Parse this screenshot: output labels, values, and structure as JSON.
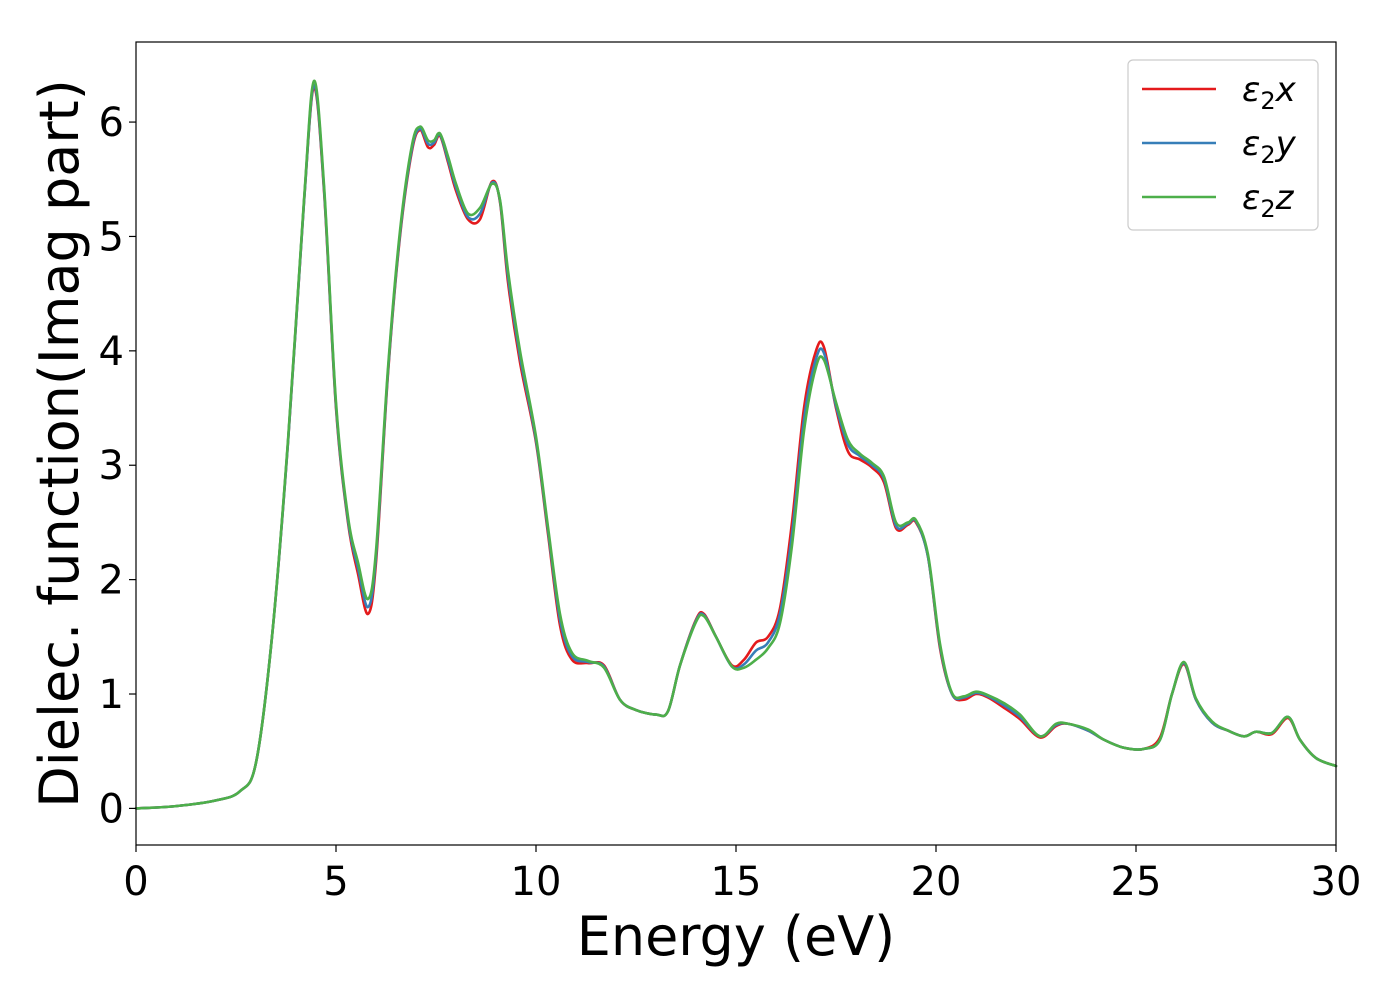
{
  "chart_data": {
    "type": "line",
    "xlabel": "Energy (eV)",
    "ylabel": "Dielec. function(Imag part)",
    "xlim": [
      0,
      30
    ],
    "ylim": [
      -0.32,
      6.7
    ],
    "xticks": [
      0,
      5,
      10,
      15,
      20,
      25,
      30
    ],
    "xtick_labels": [
      "0",
      "5",
      "10",
      "15",
      "20",
      "25",
      "30"
    ],
    "yticks": [
      0,
      1,
      2,
      3,
      4,
      5,
      6
    ],
    "ytick_labels": [
      "0",
      "1",
      "2",
      "3",
      "4",
      "5",
      "6"
    ],
    "grid": false,
    "legend_position": "top-right",
    "series": [
      {
        "name": "ε2x",
        "legend_main": "ε",
        "legend_sub": "2",
        "legend_suffix": "x",
        "color": "#e41a1c",
        "points": [
          [
            0,
            0.0
          ],
          [
            1,
            0.02
          ],
          [
            2,
            0.07
          ],
          [
            2.6,
            0.15
          ],
          [
            3.0,
            0.4
          ],
          [
            3.4,
            1.5
          ],
          [
            3.8,
            3.2
          ],
          [
            4.2,
            5.3
          ],
          [
            4.45,
            6.3
          ],
          [
            4.7,
            5.4
          ],
          [
            5.0,
            3.5
          ],
          [
            5.3,
            2.5
          ],
          [
            5.55,
            2.05
          ],
          [
            5.8,
            1.7
          ],
          [
            6.0,
            2.15
          ],
          [
            6.3,
            3.8
          ],
          [
            6.6,
            5.0
          ],
          [
            6.9,
            5.75
          ],
          [
            7.1,
            5.93
          ],
          [
            7.3,
            5.78
          ],
          [
            7.45,
            5.8
          ],
          [
            7.6,
            5.88
          ],
          [
            7.8,
            5.65
          ],
          [
            8.0,
            5.4
          ],
          [
            8.3,
            5.15
          ],
          [
            8.6,
            5.15
          ],
          [
            8.9,
            5.48
          ],
          [
            9.1,
            5.3
          ],
          [
            9.3,
            4.6
          ],
          [
            9.6,
            3.9
          ],
          [
            10.0,
            3.2
          ],
          [
            10.3,
            2.4
          ],
          [
            10.6,
            1.6
          ],
          [
            10.9,
            1.3
          ],
          [
            11.3,
            1.27
          ],
          [
            11.7,
            1.25
          ],
          [
            12.1,
            0.95
          ],
          [
            12.5,
            0.86
          ],
          [
            13.0,
            0.82
          ],
          [
            13.3,
            0.85
          ],
          [
            13.6,
            1.25
          ],
          [
            14.0,
            1.65
          ],
          [
            14.2,
            1.7
          ],
          [
            14.5,
            1.5
          ],
          [
            14.9,
            1.25
          ],
          [
            15.2,
            1.3
          ],
          [
            15.5,
            1.45
          ],
          [
            15.8,
            1.5
          ],
          [
            16.1,
            1.75
          ],
          [
            16.4,
            2.5
          ],
          [
            16.7,
            3.5
          ],
          [
            17.0,
            4.0
          ],
          [
            17.2,
            4.03
          ],
          [
            17.5,
            3.5
          ],
          [
            17.8,
            3.12
          ],
          [
            18.1,
            3.05
          ],
          [
            18.4,
            2.98
          ],
          [
            18.7,
            2.85
          ],
          [
            19.0,
            2.45
          ],
          [
            19.3,
            2.48
          ],
          [
            19.5,
            2.5
          ],
          [
            19.8,
            2.2
          ],
          [
            20.1,
            1.4
          ],
          [
            20.4,
            1.0
          ],
          [
            20.7,
            0.95
          ],
          [
            21.0,
            1.0
          ],
          [
            21.3,
            0.97
          ],
          [
            21.7,
            0.88
          ],
          [
            22.1,
            0.78
          ],
          [
            22.6,
            0.62
          ],
          [
            23.0,
            0.72
          ],
          [
            23.3,
            0.74
          ],
          [
            23.8,
            0.68
          ],
          [
            24.2,
            0.6
          ],
          [
            24.7,
            0.53
          ],
          [
            25.2,
            0.52
          ],
          [
            25.6,
            0.62
          ],
          [
            25.9,
            1.0
          ],
          [
            26.2,
            1.26
          ],
          [
            26.5,
            0.95
          ],
          [
            26.9,
            0.75
          ],
          [
            27.3,
            0.68
          ],
          [
            27.7,
            0.63
          ],
          [
            28.0,
            0.67
          ],
          [
            28.4,
            0.65
          ],
          [
            28.8,
            0.79
          ],
          [
            29.1,
            0.6
          ],
          [
            29.5,
            0.44
          ],
          [
            30.0,
            0.37
          ]
        ]
      },
      {
        "name": "ε2y",
        "legend_main": "ε",
        "legend_sub": "2",
        "legend_suffix": "y",
        "color": "#377eb8",
        "points": [
          [
            0,
            0.0
          ],
          [
            1,
            0.02
          ],
          [
            2,
            0.07
          ],
          [
            2.6,
            0.15
          ],
          [
            3.0,
            0.4
          ],
          [
            3.4,
            1.5
          ],
          [
            3.8,
            3.2
          ],
          [
            4.2,
            5.3
          ],
          [
            4.45,
            6.32
          ],
          [
            4.7,
            5.42
          ],
          [
            5.0,
            3.52
          ],
          [
            5.3,
            2.52
          ],
          [
            5.55,
            2.1
          ],
          [
            5.8,
            1.76
          ],
          [
            6.0,
            2.2
          ],
          [
            6.3,
            3.82
          ],
          [
            6.6,
            5.02
          ],
          [
            6.9,
            5.77
          ],
          [
            7.1,
            5.94
          ],
          [
            7.3,
            5.81
          ],
          [
            7.45,
            5.82
          ],
          [
            7.6,
            5.89
          ],
          [
            7.8,
            5.67
          ],
          [
            8.0,
            5.43
          ],
          [
            8.3,
            5.17
          ],
          [
            8.6,
            5.2
          ],
          [
            8.9,
            5.47
          ],
          [
            9.1,
            5.31
          ],
          [
            9.3,
            4.65
          ],
          [
            9.6,
            3.95
          ],
          [
            10.0,
            3.22
          ],
          [
            10.3,
            2.43
          ],
          [
            10.6,
            1.65
          ],
          [
            10.9,
            1.33
          ],
          [
            11.3,
            1.28
          ],
          [
            11.7,
            1.24
          ],
          [
            12.1,
            0.95
          ],
          [
            12.5,
            0.86
          ],
          [
            13.0,
            0.82
          ],
          [
            13.3,
            0.85
          ],
          [
            13.6,
            1.25
          ],
          [
            14.0,
            1.64
          ],
          [
            14.2,
            1.69
          ],
          [
            14.5,
            1.5
          ],
          [
            14.9,
            1.24
          ],
          [
            15.2,
            1.26
          ],
          [
            15.5,
            1.38
          ],
          [
            15.8,
            1.45
          ],
          [
            16.1,
            1.7
          ],
          [
            16.4,
            2.4
          ],
          [
            16.7,
            3.4
          ],
          [
            17.0,
            3.93
          ],
          [
            17.2,
            3.98
          ],
          [
            17.5,
            3.52
          ],
          [
            17.8,
            3.18
          ],
          [
            18.1,
            3.08
          ],
          [
            18.4,
            3.0
          ],
          [
            18.7,
            2.88
          ],
          [
            19.0,
            2.47
          ],
          [
            19.3,
            2.49
          ],
          [
            19.5,
            2.51
          ],
          [
            19.8,
            2.2
          ],
          [
            20.1,
            1.42
          ],
          [
            20.4,
            1.0
          ],
          [
            20.7,
            0.97
          ],
          [
            21.0,
            1.01
          ],
          [
            21.3,
            0.98
          ],
          [
            21.7,
            0.9
          ],
          [
            22.1,
            0.8
          ],
          [
            22.6,
            0.63
          ],
          [
            23.0,
            0.73
          ],
          [
            23.3,
            0.74
          ],
          [
            23.8,
            0.68
          ],
          [
            24.2,
            0.6
          ],
          [
            24.7,
            0.53
          ],
          [
            25.2,
            0.52
          ],
          [
            25.6,
            0.6
          ],
          [
            25.9,
            1.0
          ],
          [
            26.2,
            1.27
          ],
          [
            26.5,
            0.95
          ],
          [
            26.9,
            0.75
          ],
          [
            27.3,
            0.68
          ],
          [
            27.7,
            0.63
          ],
          [
            28.0,
            0.67
          ],
          [
            28.4,
            0.66
          ],
          [
            28.8,
            0.8
          ],
          [
            29.1,
            0.6
          ],
          [
            29.5,
            0.44
          ],
          [
            30.0,
            0.37
          ]
        ]
      },
      {
        "name": "ε2z",
        "legend_main": "ε",
        "legend_sub": "2",
        "legend_suffix": "z",
        "color": "#4daf4a",
        "points": [
          [
            0,
            0.0
          ],
          [
            1,
            0.02
          ],
          [
            2,
            0.07
          ],
          [
            2.6,
            0.15
          ],
          [
            3.0,
            0.4
          ],
          [
            3.4,
            1.5
          ],
          [
            3.8,
            3.22
          ],
          [
            4.2,
            5.32
          ],
          [
            4.45,
            6.36
          ],
          [
            4.7,
            5.45
          ],
          [
            5.0,
            3.55
          ],
          [
            5.3,
            2.55
          ],
          [
            5.55,
            2.15
          ],
          [
            5.8,
            1.83
          ],
          [
            6.0,
            2.25
          ],
          [
            6.3,
            3.85
          ],
          [
            6.6,
            5.05
          ],
          [
            6.9,
            5.8
          ],
          [
            7.1,
            5.96
          ],
          [
            7.3,
            5.84
          ],
          [
            7.45,
            5.84
          ],
          [
            7.6,
            5.9
          ],
          [
            7.8,
            5.7
          ],
          [
            8.0,
            5.46
          ],
          [
            8.3,
            5.2
          ],
          [
            8.6,
            5.25
          ],
          [
            8.9,
            5.46
          ],
          [
            9.1,
            5.32
          ],
          [
            9.3,
            4.7
          ],
          [
            9.6,
            4.0
          ],
          [
            10.0,
            3.25
          ],
          [
            10.3,
            2.46
          ],
          [
            10.6,
            1.7
          ],
          [
            10.9,
            1.36
          ],
          [
            11.3,
            1.29
          ],
          [
            11.7,
            1.23
          ],
          [
            12.1,
            0.95
          ],
          [
            12.5,
            0.86
          ],
          [
            13.0,
            0.82
          ],
          [
            13.3,
            0.85
          ],
          [
            13.6,
            1.25
          ],
          [
            14.0,
            1.63
          ],
          [
            14.2,
            1.68
          ],
          [
            14.5,
            1.5
          ],
          [
            14.9,
            1.24
          ],
          [
            15.2,
            1.23
          ],
          [
            15.5,
            1.3
          ],
          [
            15.8,
            1.4
          ],
          [
            16.1,
            1.62
          ],
          [
            16.4,
            2.3
          ],
          [
            16.7,
            3.3
          ],
          [
            17.0,
            3.86
          ],
          [
            17.2,
            3.92
          ],
          [
            17.5,
            3.55
          ],
          [
            17.8,
            3.22
          ],
          [
            18.1,
            3.1
          ],
          [
            18.4,
            3.02
          ],
          [
            18.7,
            2.9
          ],
          [
            19.0,
            2.5
          ],
          [
            19.3,
            2.5
          ],
          [
            19.5,
            2.52
          ],
          [
            19.8,
            2.22
          ],
          [
            20.1,
            1.44
          ],
          [
            20.4,
            1.01
          ],
          [
            20.7,
            0.98
          ],
          [
            21.0,
            1.02
          ],
          [
            21.3,
            0.99
          ],
          [
            21.7,
            0.92
          ],
          [
            22.1,
            0.82
          ],
          [
            22.6,
            0.63
          ],
          [
            23.0,
            0.74
          ],
          [
            23.3,
            0.74
          ],
          [
            23.8,
            0.69
          ],
          [
            24.2,
            0.6
          ],
          [
            24.7,
            0.53
          ],
          [
            25.2,
            0.52
          ],
          [
            25.6,
            0.6
          ],
          [
            25.9,
            1.0
          ],
          [
            26.2,
            1.28
          ],
          [
            26.5,
            0.96
          ],
          [
            26.9,
            0.76
          ],
          [
            27.3,
            0.68
          ],
          [
            27.7,
            0.63
          ],
          [
            28.0,
            0.67
          ],
          [
            28.4,
            0.66
          ],
          [
            28.8,
            0.8
          ],
          [
            29.1,
            0.6
          ],
          [
            29.5,
            0.44
          ],
          [
            30.0,
            0.37
          ]
        ]
      }
    ]
  }
}
